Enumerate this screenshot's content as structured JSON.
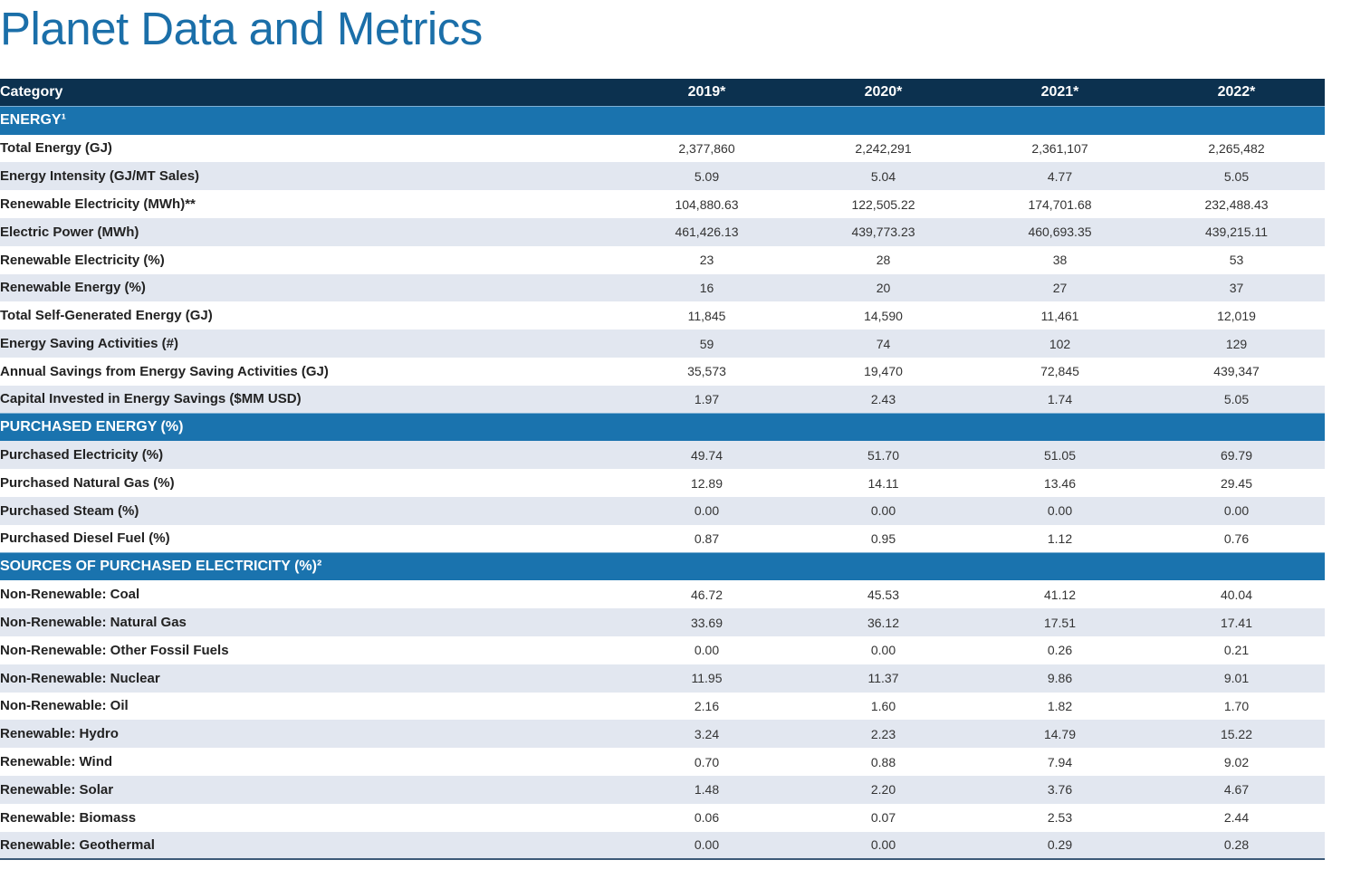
{
  "header": {
    "title": "Planet Data and Metrics"
  },
  "table": {
    "columns": [
      "Category",
      "2019*",
      "2020*",
      "2021*",
      "2022*"
    ],
    "sections": [
      {
        "title": "ENERGY¹",
        "rows": [
          [
            "Total Energy (GJ)",
            "2,377,860",
            "2,242,291",
            "2,361,107",
            "2,265,482"
          ],
          [
            "Energy Intensity (GJ/MT Sales)",
            "5.09",
            "5.04",
            "4.77",
            "5.05"
          ],
          [
            "Renewable Electricity (MWh)**",
            "104,880.63",
            "122,505.22",
            "174,701.68",
            "232,488.43"
          ],
          [
            "Electric Power (MWh)",
            "461,426.13",
            "439,773.23",
            "460,693.35",
            "439,215.11"
          ],
          [
            "Renewable Electricity (%)",
            "23",
            "28",
            "38",
            "53"
          ],
          [
            "Renewable Energy (%)",
            "16",
            "20",
            "27",
            "37"
          ],
          [
            "Total Self-Generated Energy (GJ)",
            "11,845",
            "14,590",
            "11,461",
            "12,019"
          ],
          [
            "Energy Saving Activities (#)",
            "59",
            "74",
            "102",
            "129"
          ],
          [
            "Annual Savings from Energy Saving Activities (GJ)",
            "35,573",
            "19,470",
            "72,845",
            "439,347"
          ],
          [
            "Capital Invested in Energy Savings ($MM USD)",
            "1.97",
            "2.43",
            "1.74",
            "5.05"
          ]
        ]
      },
      {
        "title": "PURCHASED ENERGY (%)",
        "rows": [
          [
            "Purchased Electricity (%)",
            "49.74",
            "51.70",
            "51.05",
            "69.79"
          ],
          [
            "Purchased Natural Gas (%)",
            "12.89",
            "14.11",
            "13.46",
            "29.45"
          ],
          [
            "Purchased Steam (%)",
            "0.00",
            "0.00",
            "0.00",
            "0.00"
          ],
          [
            "Purchased Diesel Fuel (%)",
            "0.87",
            "0.95",
            "1.12",
            "0.76"
          ]
        ]
      },
      {
        "title": "SOURCES OF PURCHASED ELECTRICITY (%)²",
        "rows": [
          [
            "Non-Renewable: Coal",
            "46.72",
            "45.53",
            "41.12",
            "40.04"
          ],
          [
            "Non-Renewable: Natural Gas",
            "33.69",
            "36.12",
            "17.51",
            "17.41"
          ],
          [
            "Non-Renewable: Other Fossil Fuels",
            "0.00",
            "0.00",
            "0.26",
            "0.21"
          ],
          [
            "Non-Renewable: Nuclear",
            "11.95",
            "11.37",
            "9.86",
            "9.01"
          ],
          [
            "Non-Renewable: Oil",
            "2.16",
            "1.60",
            "1.82",
            "1.70"
          ],
          [
            "Renewable: Hydro",
            "3.24",
            "2.23",
            "14.79",
            "15.22"
          ],
          [
            "Renewable: Wind",
            "0.70",
            "0.88",
            "7.94",
            "9.02"
          ],
          [
            "Renewable: Solar",
            "1.48",
            "2.20",
            "3.76",
            "4.67"
          ],
          [
            "Renewable: Biomass",
            "0.06",
            "0.07",
            "2.53",
            "2.44"
          ],
          [
            "Renewable: Geothermal",
            "0.00",
            "0.00",
            "0.29",
            "0.28"
          ]
        ]
      }
    ]
  }
}
